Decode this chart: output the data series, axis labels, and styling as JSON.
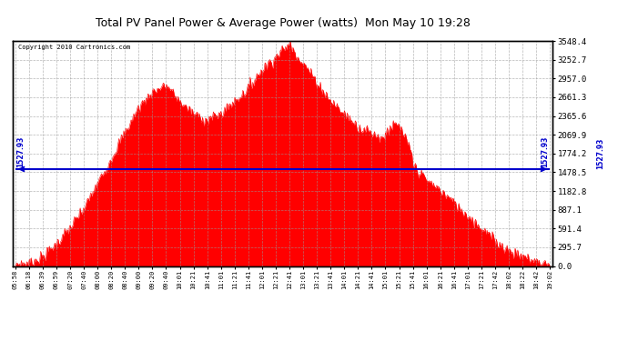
{
  "title": "Total PV Panel Power & Average Power (watts)  Mon May 10 19:28",
  "copyright": "Copyright 2010 Cartronics.com",
  "avg_power": 1527.93,
  "y_max": 3548.4,
  "y_ticks": [
    0.0,
    295.7,
    591.4,
    887.1,
    1182.8,
    1478.5,
    1774.2,
    2069.9,
    2365.6,
    2661.3,
    2957.0,
    3252.7,
    3548.4
  ],
  "bg_color": "#ffffff",
  "plot_bg_color": "#ffffff",
  "fill_color": "#ff0000",
  "line_color": "#ff0000",
  "avg_line_color": "#0000cc",
  "avg_label_color": "#0000cc",
  "grid_color": "#999999",
  "title_color": "#000000",
  "border_color": "#000000",
  "x_labels": [
    "05:58",
    "06:18",
    "06:39",
    "06:59",
    "07:20",
    "07:40",
    "08:00",
    "08:20",
    "08:40",
    "09:00",
    "09:20",
    "09:40",
    "10:01",
    "10:21",
    "10:41",
    "11:01",
    "11:21",
    "11:41",
    "12:01",
    "12:21",
    "12:41",
    "13:01",
    "13:21",
    "13:41",
    "14:01",
    "14:21",
    "14:41",
    "15:01",
    "15:21",
    "15:41",
    "16:01",
    "16:21",
    "16:41",
    "17:01",
    "17:21",
    "17:42",
    "18:02",
    "18:22",
    "18:42",
    "19:02"
  ],
  "figsize": [
    6.9,
    3.75
  ],
  "dpi": 100
}
